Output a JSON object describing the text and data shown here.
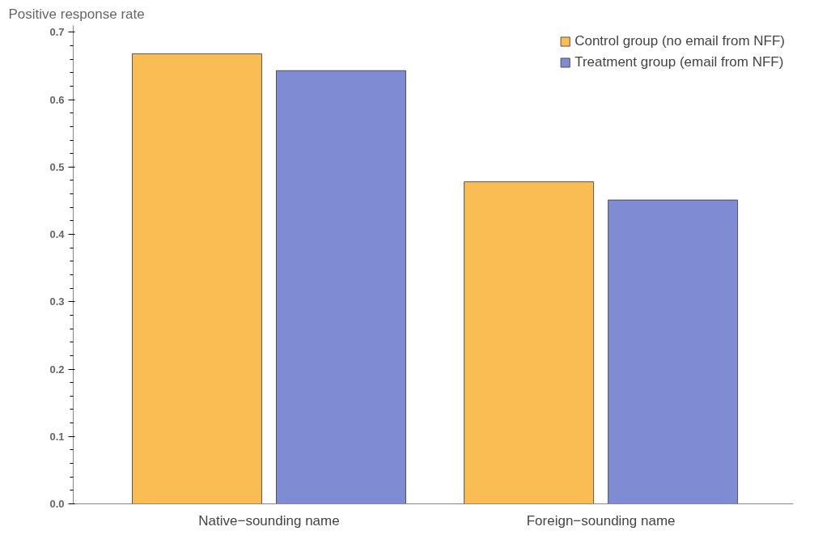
{
  "chart_data": {
    "type": "bar",
    "ylabel": "Positive response rate",
    "categories": [
      "Native−sounding name",
      "Foreign−sounding name"
    ],
    "series": [
      {
        "name": "Control group (no email from NFF)",
        "color": "#f9bd53",
        "values": [
          0.668,
          0.478
        ]
      },
      {
        "name": "Treatment group (email from NFF)",
        "color": "#7f8cd4",
        "values": [
          0.643,
          0.451
        ]
      }
    ],
    "ylim": [
      0,
      0.71
    ],
    "yticks": [
      {
        "value": 0,
        "label": "0.0"
      },
      0.1,
      0.2,
      0.3,
      0.4,
      0.5,
      0.6,
      0.7
    ],
    "grid": false,
    "legend": "top right"
  }
}
